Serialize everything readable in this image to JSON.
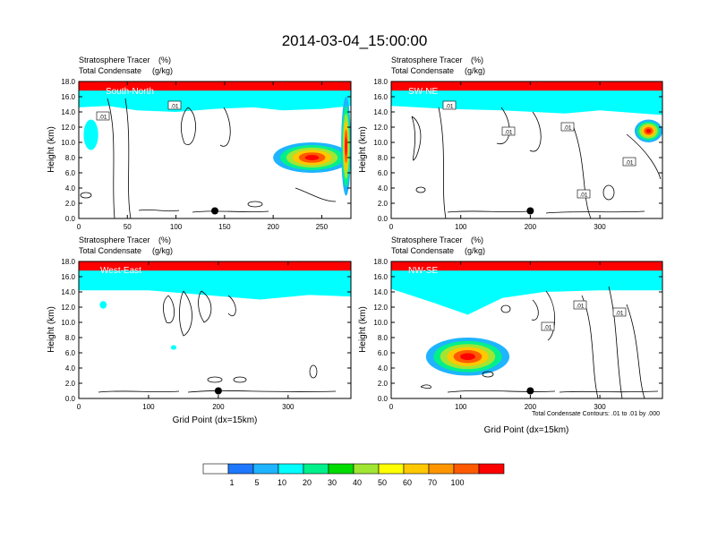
{
  "title": "2014-03-04_15:00:00",
  "panel_header": {
    "line1_name": "Stratosphere Tracer",
    "line1_unit": "(%)",
    "line2_name": "Total Condensate",
    "line2_unit": "(g/kg)"
  },
  "y_axis_label": "Height (km)",
  "x_axis_label": "Grid Point (dx=15km)",
  "contour_note": "Total Condensate Contours: .01 to .01 by .000",
  "colorbar": {
    "levels": [
      "1",
      "5",
      "10",
      "20",
      "30",
      "40",
      "50",
      "60",
      "70",
      "100"
    ],
    "colors": [
      "#ffffff",
      "#1e78ff",
      "#1eb4ff",
      "#00ffff",
      "#00f08c",
      "#00dc00",
      "#a0e632",
      "#ffff00",
      "#ffc800",
      "#ff9600",
      "#ff5a00",
      "#ff0000"
    ]
  },
  "chart_data": [
    {
      "type": "heatmap",
      "name": "South-North",
      "xlim": [
        0,
        280
      ],
      "xticks": [
        0,
        50,
        100,
        150,
        200,
        250
      ],
      "ylim": [
        0,
        18
      ],
      "yticks": [
        0.0,
        2.0,
        4.0,
        6.0,
        8.0,
        10.0,
        12.0,
        14.0,
        16.0,
        18.0
      ],
      "tropopause_km": [
        [
          0,
          16.0
        ],
        [
          30,
          16.2
        ],
        [
          60,
          15.6
        ],
        [
          100,
          15.4
        ],
        [
          140,
          15.8
        ],
        [
          180,
          16.0
        ],
        [
          210,
          15.6
        ],
        [
          250,
          15.8
        ],
        [
          280,
          16.2
        ]
      ],
      "features": [
        {
          "x": [
            5,
            20
          ],
          "y": [
            9,
            13
          ],
          "level": "5"
        },
        {
          "x": [
            200,
            280
          ],
          "y": [
            6,
            10
          ],
          "level": "70"
        },
        {
          "x": [
            270,
            280
          ],
          "y": [
            3,
            16
          ],
          "level": "100"
        }
      ],
      "contour_labels": [
        ".01",
        ".01"
      ],
      "marker": {
        "x": 140,
        "y": 1.0
      }
    },
    {
      "type": "heatmap",
      "name": "SW-NE",
      "xlim": [
        0,
        390
      ],
      "xticks": [
        0,
        100,
        200,
        300
      ],
      "ylim": [
        0,
        18
      ],
      "yticks": [
        0.0,
        2.0,
        4.0,
        6.0,
        8.0,
        10.0,
        12.0,
        14.0,
        16.0,
        18.0
      ],
      "tropopause_km": [
        [
          0,
          16.2
        ],
        [
          80,
          15.8
        ],
        [
          160,
          15.6
        ],
        [
          250,
          15.2
        ],
        [
          300,
          15.6
        ],
        [
          360,
          15.2
        ],
        [
          390,
          15.0
        ]
      ],
      "features": [
        {
          "x": [
            350,
            390
          ],
          "y": [
            10,
            13
          ],
          "level": "70"
        }
      ],
      "contour_labels": [
        ".01",
        ".01",
        ".01",
        ".01",
        ".01"
      ],
      "marker": {
        "x": 200,
        "y": 1.0
      }
    },
    {
      "type": "heatmap",
      "name": "West-East",
      "xlim": [
        0,
        390
      ],
      "xticks": [
        0,
        100,
        200,
        300
      ],
      "ylim": [
        0,
        18
      ],
      "yticks": [
        0.0,
        2.0,
        4.0,
        6.0,
        8.0,
        10.0,
        12.0,
        14.0,
        16.0,
        18.0
      ],
      "tropopause_km": [
        [
          0,
          15.6
        ],
        [
          100,
          15.6
        ],
        [
          180,
          15.0
        ],
        [
          260,
          14.4
        ],
        [
          330,
          15.0
        ],
        [
          390,
          14.8
        ]
      ],
      "features": [
        {
          "x": [
            30,
            40
          ],
          "y": [
            11.8,
            12.8
          ],
          "level": "5"
        },
        {
          "x": [
            132,
            140
          ],
          "y": [
            6.4,
            7.0
          ],
          "level": "5"
        }
      ],
      "contour_labels": [],
      "marker": {
        "x": 200,
        "y": 1.0
      }
    },
    {
      "type": "heatmap",
      "name": "NW-SE",
      "xlim": [
        0,
        390
      ],
      "xticks": [
        0,
        100,
        200,
        300
      ],
      "ylim": [
        0,
        18
      ],
      "yticks": [
        0.0,
        2.0,
        4.0,
        6.0,
        8.0,
        10.0,
        12.0,
        14.0,
        16.0,
        18.0
      ],
      "tropopause_km": [
        [
          0,
          15.8
        ],
        [
          60,
          14.0
        ],
        [
          110,
          12.4
        ],
        [
          160,
          14.6
        ],
        [
          220,
          15.4
        ],
        [
          300,
          15.6
        ],
        [
          390,
          15.6
        ]
      ],
      "features": [
        {
          "x": [
            50,
            170
          ],
          "y": [
            3.0,
            8.0
          ],
          "level": "70"
        }
      ],
      "contour_labels": [
        ".01",
        ".01",
        ".01"
      ],
      "marker": {
        "x": 200,
        "y": 1.0
      }
    }
  ]
}
